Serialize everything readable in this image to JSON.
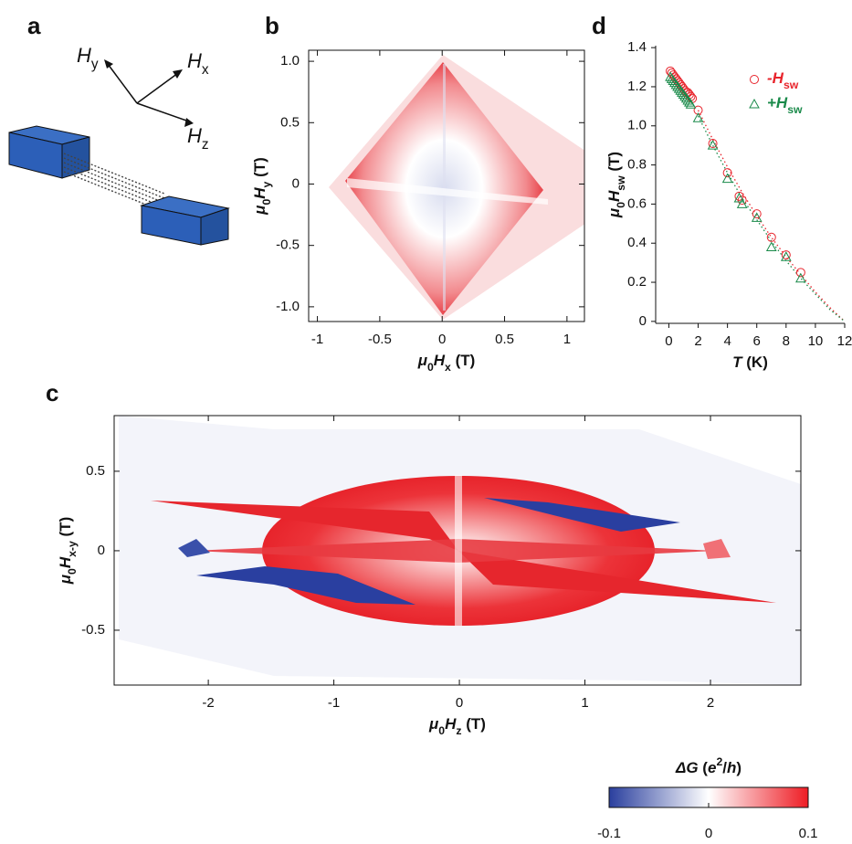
{
  "panel_labels": [
    "a",
    "b",
    "c",
    "d"
  ],
  "diagram": {
    "labels": [
      {
        "text": "H",
        "sub": "y"
      },
      {
        "text": "H",
        "sub": "x"
      },
      {
        "text": "H",
        "sub": "z"
      }
    ]
  },
  "chart_data": [
    {
      "type": "heatmap",
      "xlabel": [
        {
          "text": "μ",
          "italic": true
        },
        {
          "text": "0",
          "sub": true
        },
        {
          "text": "H",
          "italic": true
        },
        {
          "text": "x",
          "sub": true
        },
        {
          "text": " (T)"
        }
      ],
      "ylabel": [
        {
          "text": "μ",
          "italic": true
        },
        {
          "text": "0",
          "sub": true
        },
        {
          "text": "H",
          "italic": true
        },
        {
          "text": "y",
          "sub": true
        },
        {
          "text": " (T)"
        }
      ],
      "xlim": [
        -1.07,
        1.14
      ],
      "ylim": [
        -1.12,
        1.09
      ],
      "xticks": [
        -1,
        -0.5,
        0,
        0.5,
        1
      ],
      "yticks": [
        {
          "value": 1,
          "label": "1.0"
        },
        0.5,
        0,
        -0.5,
        {
          "value": -1,
          "label": "-1.0"
        }
      ]
    },
    {
      "type": "heatmap",
      "xlabel": [
        {
          "text": "μ",
          "italic": true
        },
        {
          "text": "0",
          "sub": true
        },
        {
          "text": "H",
          "italic": true
        },
        {
          "text": "z",
          "sub": true
        },
        {
          "text": " (T)"
        }
      ],
      "ylabel": [
        {
          "text": "μ",
          "italic": true
        },
        {
          "text": "0",
          "sub": true
        },
        {
          "text": "H",
          "italic": true
        },
        {
          "text": "x-y",
          "sub": true
        },
        {
          "text": " (T)"
        }
      ],
      "xlim": [
        -2.75,
        2.72
      ],
      "ylim": [
        -0.845,
        0.85
      ],
      "xticks": [
        -2,
        -1,
        0,
        1,
        2
      ],
      "yticks": [
        0.5,
        0,
        -0.5
      ],
      "colorbar": {
        "label": [
          {
            "text": "ΔG",
            "italic": true
          },
          {
            "text": " ("
          },
          {
            "text": "e",
            "italic": true
          },
          {
            "text": "2",
            "sup": true
          },
          {
            "text": "/"
          },
          {
            "text": "h",
            "italic": true
          },
          {
            "text": ")"
          }
        ],
        "lim": [
          -0.1,
          0.1
        ],
        "ticks": [
          -0.1,
          0,
          0.1
        ],
        "colors": [
          "#2a3f9e",
          "#ffffff",
          "#ee1c24"
        ]
      }
    },
    {
      "type": "scatter",
      "xlabel": [
        {
          "text": "T",
          "italic": true
        },
        {
          "text": " (K)"
        }
      ],
      "ylabel": [
        {
          "text": "μ",
          "italic": true
        },
        {
          "text": "0",
          "sub": true
        },
        {
          "text": "H",
          "italic": true
        },
        {
          "text": "sw",
          "sub": true
        },
        {
          "text": " (T)"
        }
      ],
      "xlim": [
        -0.9,
        12
      ],
      "ylim": [
        -0.01,
        1.41
      ],
      "xticks": [
        0,
        2,
        4,
        6,
        8,
        10,
        12
      ],
      "yticks": [
        0,
        0.2,
        0.4,
        0.6,
        0.8,
        {
          "value": 1,
          "label": "1.0"
        },
        1.2,
        1.4
      ],
      "legend": "upper right",
      "series": [
        {
          "name": "-H",
          "name_sub": "sw",
          "color": "#e8242c",
          "marker": "circle",
          "x": [
            0.1,
            0.2,
            0.3,
            0.4,
            0.5,
            0.6,
            0.7,
            0.8,
            0.9,
            1.0,
            1.1,
            1.2,
            1.3,
            1.4,
            1.5,
            1.6,
            2,
            3,
            4,
            4.8,
            5,
            6,
            7,
            8,
            9
          ],
          "values": [
            1.28,
            1.27,
            1.26,
            1.25,
            1.24,
            1.23,
            1.22,
            1.21,
            1.2,
            1.19,
            1.18,
            1.17,
            1.17,
            1.16,
            1.15,
            1.14,
            1.08,
            0.91,
            0.76,
            0.64,
            0.62,
            0.55,
            0.43,
            0.34,
            0.25
          ]
        },
        {
          "name": "+H",
          "name_sub": "sw",
          "color": "#1a8a4a",
          "marker": "triangle",
          "x": [
            0.1,
            0.2,
            0.3,
            0.4,
            0.5,
            0.6,
            0.7,
            0.8,
            0.9,
            1.0,
            1.1,
            1.2,
            1.3,
            1.4,
            1.5,
            2,
            3,
            4,
            4.8,
            5,
            6,
            7,
            8,
            9
          ],
          "values": [
            1.25,
            1.24,
            1.23,
            1.22,
            1.21,
            1.2,
            1.19,
            1.18,
            1.17,
            1.16,
            1.15,
            1.14,
            1.13,
            1.12,
            1.11,
            1.04,
            0.9,
            0.73,
            0.63,
            0.6,
            0.53,
            0.38,
            0.33,
            0.22
          ]
        }
      ],
      "fits": [
        {
          "color": "#e8242c",
          "x": [
            2,
            3,
            4,
            5,
            6,
            7,
            8,
            9,
            10,
            11,
            12
          ],
          "values": [
            1.08,
            0.93,
            0.79,
            0.66,
            0.54,
            0.43,
            0.33,
            0.24,
            0.15,
            0.07,
            0
          ]
        },
        {
          "color": "#1a8a4a",
          "x": [
            2,
            3,
            4,
            5,
            6,
            7,
            8,
            9,
            10,
            11,
            12
          ],
          "values": [
            1.05,
            0.9,
            0.76,
            0.63,
            0.52,
            0.41,
            0.31,
            0.22,
            0.14,
            0.06,
            0
          ]
        }
      ]
    }
  ]
}
